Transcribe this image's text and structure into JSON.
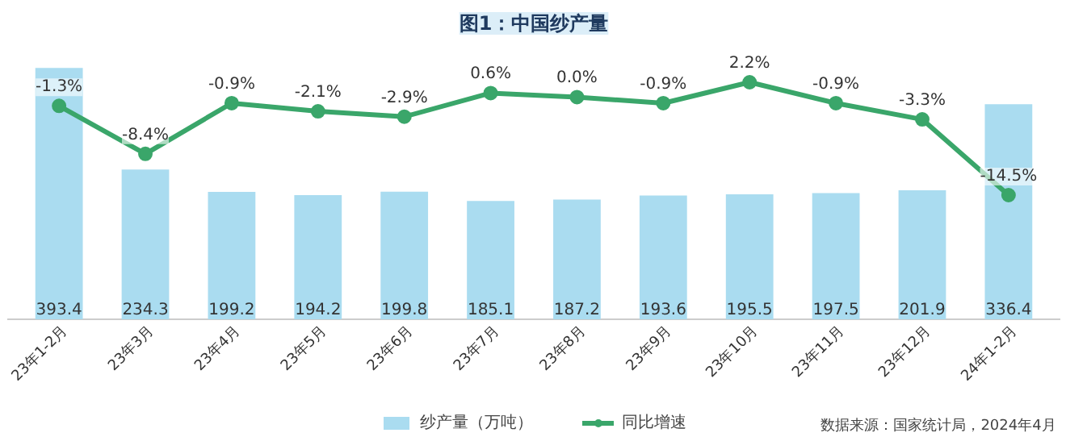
{
  "chart_data": {
    "type": "bar",
    "title": "图1：中国纱产量",
    "categories": [
      "23年1-2月",
      "23年3月",
      "23年4月",
      "23年5月",
      "23年6月",
      "23年7月",
      "23年8月",
      "23年9月",
      "23年10月",
      "23年11月",
      "23年12月",
      "24年1-2月"
    ],
    "series": [
      {
        "name": "纱产量（万吨）",
        "color": "#aadcf0",
        "values": [
          393.4,
          234.3,
          199.2,
          194.2,
          199.8,
          185.1,
          187.2,
          193.6,
          195.5,
          197.5,
          201.9,
          336.4
        ],
        "value_labels": [
          "393.4",
          "234.3",
          "199.2",
          "194.2",
          "199.8",
          "185.1",
          "187.2",
          "193.6",
          "195.5",
          "197.5",
          "201.9",
          "336.4"
        ]
      },
      {
        "name": "同比增速",
        "type": "line",
        "axis": "y2",
        "color": "#3aa66a",
        "marker": "circle",
        "line_style": "solid",
        "values": [
          -1.3,
          -8.4,
          -0.9,
          -2.1,
          -2.9,
          0.6,
          0.0,
          -0.9,
          2.2,
          -0.9,
          -3.3,
          -14.5
        ],
        "value_labels": [
          "-1.3%",
          "-8.4%",
          "-0.9%",
          "-2.1%",
          "-2.9%",
          "0.6%",
          "0.0%",
          "-0.9%",
          "2.2%",
          "-0.9%",
          "-3.3%",
          "-14.5%"
        ]
      }
    ],
    "legend": "bottom",
    "annotations": [
      "数据来源：国家统计局，2024年4月"
    ]
  }
}
